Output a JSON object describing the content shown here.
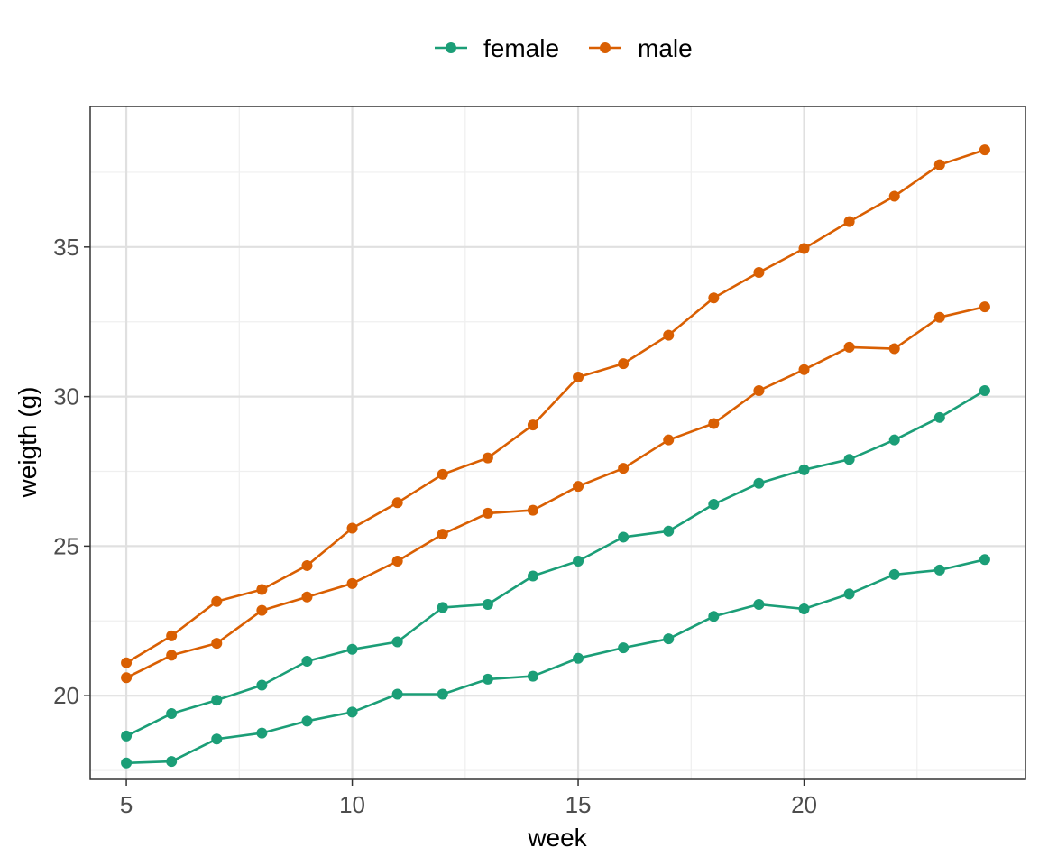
{
  "colors": {
    "female": "#1b9e77",
    "male": "#d95f02",
    "grid_major": "#e0e0e0",
    "grid_minor": "#efefef",
    "panel_border": "#333333"
  },
  "chart_data": {
    "type": "line",
    "xlabel": "week",
    "ylabel": "weigth (g)",
    "xlim": [
      4.2,
      24.9
    ],
    "ylim": [
      17.2,
      39.7
    ],
    "xticks": [
      5,
      10,
      15,
      20
    ],
    "yticks": [
      20,
      25,
      30,
      35
    ],
    "grid": true,
    "legend_position": "top",
    "x": [
      5,
      6,
      7,
      8,
      9,
      10,
      11,
      12,
      13,
      14,
      15,
      16,
      17,
      18,
      19,
      20,
      21,
      22,
      23,
      24
    ],
    "legend": [
      {
        "label": "female",
        "color": "#1b9e77"
      },
      {
        "label": "male",
        "color": "#d95f02"
      }
    ],
    "series": [
      {
        "group": "male",
        "color": "#d95f02",
        "values": [
          21.1,
          22.0,
          23.15,
          23.55,
          24.35,
          25.6,
          26.45,
          27.4,
          27.95,
          29.05,
          30.65,
          31.1,
          32.05,
          33.3,
          34.15,
          34.95,
          35.85,
          36.7,
          37.75,
          38.25
        ]
      },
      {
        "group": "male",
        "color": "#d95f02",
        "values": [
          20.6,
          21.35,
          21.75,
          22.85,
          23.3,
          23.75,
          24.5,
          25.4,
          26.1,
          26.2,
          27.0,
          27.6,
          28.55,
          29.1,
          30.2,
          30.9,
          31.65,
          31.6,
          32.65,
          33.0
        ]
      },
      {
        "group": "female",
        "color": "#1b9e77",
        "values": [
          18.65,
          19.4,
          19.85,
          20.35,
          21.15,
          21.55,
          21.8,
          22.95,
          23.05,
          24.0,
          24.5,
          25.3,
          25.5,
          26.4,
          27.1,
          27.55,
          27.9,
          28.55,
          29.3,
          30.2
        ]
      },
      {
        "group": "female",
        "color": "#1b9e77",
        "values": [
          17.75,
          17.8,
          18.55,
          18.75,
          19.15,
          19.45,
          20.05,
          20.05,
          20.55,
          20.65,
          21.25,
          21.6,
          21.9,
          22.65,
          23.05,
          22.9,
          23.4,
          24.05,
          24.2,
          24.55
        ]
      }
    ]
  }
}
